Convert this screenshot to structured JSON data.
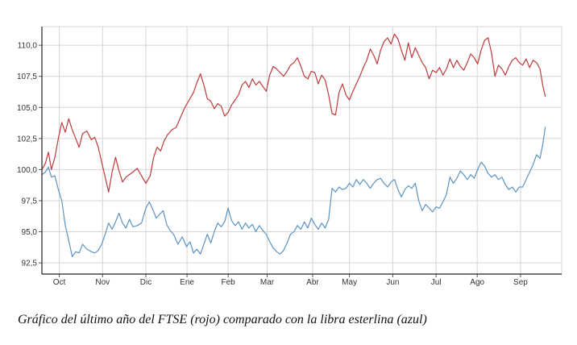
{
  "caption": "Gráfico del último año del FTSE (rojo) comparado con la libra esterlina (azul)",
  "colors": {
    "ftse": "#c0393b",
    "gbp": "#5b93c2",
    "grid": "#d4d4d4",
    "axis": "#222222"
  },
  "chart_data": {
    "type": "line",
    "title": "",
    "xlabel": "",
    "ylabel": "",
    "grid": true,
    "ylim": [
      91.6,
      111.5
    ],
    "yticks": [
      "92,5",
      "95,0",
      "97,5",
      "100,0",
      "102,5",
      "105,0",
      "107,5",
      "110,0"
    ],
    "ytick_values": [
      92.5,
      95.0,
      97.5,
      100.0,
      102.5,
      105.0,
      107.5,
      110.0
    ],
    "xlim": [
      0,
      12
    ],
    "xticks": [
      "Oct",
      "Nov",
      "Dic",
      "Ene",
      "Feb",
      "Mar",
      "Abr",
      "May",
      "Jun",
      "Jul",
      "Ago",
      "Sep"
    ],
    "xtick_values": [
      0.4,
      1.4,
      2.4,
      3.35,
      4.3,
      5.2,
      6.25,
      7.1,
      8.1,
      9.1,
      10.05,
      11.05
    ],
    "series": [
      {
        "key": "ftse",
        "points": [
          [
            0.0,
            100.0
          ],
          [
            0.08,
            100.5
          ],
          [
            0.15,
            101.4
          ],
          [
            0.22,
            100.0
          ],
          [
            0.3,
            101.0
          ],
          [
            0.38,
            102.5
          ],
          [
            0.46,
            103.8
          ],
          [
            0.54,
            103.0
          ],
          [
            0.62,
            104.1
          ],
          [
            0.7,
            103.2
          ],
          [
            0.78,
            102.5
          ],
          [
            0.86,
            101.8
          ],
          [
            0.94,
            102.9
          ],
          [
            1.04,
            103.1
          ],
          [
            1.14,
            102.4
          ],
          [
            1.22,
            102.6
          ],
          [
            1.3,
            101.8
          ],
          [
            1.38,
            100.6
          ],
          [
            1.46,
            99.4
          ],
          [
            1.54,
            98.2
          ],
          [
            1.62,
            99.8
          ],
          [
            1.7,
            101.0
          ],
          [
            1.78,
            99.9
          ],
          [
            1.86,
            99.0
          ],
          [
            1.94,
            99.4
          ],
          [
            2.02,
            99.6
          ],
          [
            2.1,
            99.8
          ],
          [
            2.2,
            100.1
          ],
          [
            2.3,
            99.5
          ],
          [
            2.4,
            98.9
          ],
          [
            2.5,
            99.5
          ],
          [
            2.58,
            101.0
          ],
          [
            2.66,
            101.8
          ],
          [
            2.74,
            101.5
          ],
          [
            2.82,
            102.3
          ],
          [
            2.9,
            102.8
          ],
          [
            3.0,
            103.2
          ],
          [
            3.1,
            103.4
          ],
          [
            3.2,
            104.2
          ],
          [
            3.3,
            105.0
          ],
          [
            3.4,
            105.6
          ],
          [
            3.5,
            106.2
          ],
          [
            3.58,
            107.0
          ],
          [
            3.66,
            107.7
          ],
          [
            3.74,
            106.8
          ],
          [
            3.82,
            105.7
          ],
          [
            3.9,
            105.5
          ],
          [
            3.98,
            104.9
          ],
          [
            4.06,
            105.3
          ],
          [
            4.14,
            105.1
          ],
          [
            4.22,
            104.3
          ],
          [
            4.3,
            104.6
          ],
          [
            4.38,
            105.2
          ],
          [
            4.46,
            105.6
          ],
          [
            4.54,
            106.0
          ],
          [
            4.62,
            106.8
          ],
          [
            4.7,
            107.1
          ],
          [
            4.78,
            106.6
          ],
          [
            4.86,
            107.3
          ],
          [
            4.94,
            106.8
          ],
          [
            5.02,
            107.1
          ],
          [
            5.1,
            106.7
          ],
          [
            5.18,
            106.3
          ],
          [
            5.26,
            107.6
          ],
          [
            5.34,
            108.3
          ],
          [
            5.42,
            108.1
          ],
          [
            5.5,
            107.8
          ],
          [
            5.58,
            107.5
          ],
          [
            5.66,
            107.9
          ],
          [
            5.74,
            108.4
          ],
          [
            5.82,
            108.6
          ],
          [
            5.9,
            109.0
          ],
          [
            5.98,
            108.3
          ],
          [
            6.06,
            107.5
          ],
          [
            6.14,
            107.3
          ],
          [
            6.22,
            107.9
          ],
          [
            6.3,
            107.8
          ],
          [
            6.38,
            106.9
          ],
          [
            6.46,
            107.6
          ],
          [
            6.54,
            107.2
          ],
          [
            6.62,
            106.0
          ],
          [
            6.7,
            104.5
          ],
          [
            6.78,
            104.4
          ],
          [
            6.86,
            106.2
          ],
          [
            6.94,
            106.9
          ],
          [
            7.02,
            106.0
          ],
          [
            7.1,
            105.6
          ],
          [
            7.18,
            106.3
          ],
          [
            7.26,
            106.9
          ],
          [
            7.34,
            107.5
          ],
          [
            7.42,
            108.2
          ],
          [
            7.5,
            108.8
          ],
          [
            7.58,
            109.7
          ],
          [
            7.66,
            109.2
          ],
          [
            7.74,
            108.5
          ],
          [
            7.82,
            109.6
          ],
          [
            7.9,
            110.3
          ],
          [
            7.98,
            110.6
          ],
          [
            8.06,
            110.1
          ],
          [
            8.14,
            110.9
          ],
          [
            8.22,
            110.5
          ],
          [
            8.3,
            109.6
          ],
          [
            8.38,
            108.8
          ],
          [
            8.46,
            110.2
          ],
          [
            8.54,
            109.0
          ],
          [
            8.62,
            109.8
          ],
          [
            8.7,
            109.2
          ],
          [
            8.78,
            108.6
          ],
          [
            8.86,
            108.2
          ],
          [
            8.94,
            107.3
          ],
          [
            9.02,
            108.0
          ],
          [
            9.1,
            107.8
          ],
          [
            9.18,
            108.2
          ],
          [
            9.26,
            107.6
          ],
          [
            9.34,
            108.1
          ],
          [
            9.42,
            108.9
          ],
          [
            9.5,
            108.2
          ],
          [
            9.58,
            108.8
          ],
          [
            9.66,
            108.3
          ],
          [
            9.74,
            108.0
          ],
          [
            9.82,
            108.6
          ],
          [
            9.9,
            109.3
          ],
          [
            9.98,
            109.0
          ],
          [
            10.06,
            108.5
          ],
          [
            10.14,
            109.6
          ],
          [
            10.22,
            110.4
          ],
          [
            10.3,
            110.6
          ],
          [
            10.38,
            109.4
          ],
          [
            10.46,
            107.5
          ],
          [
            10.54,
            108.4
          ],
          [
            10.62,
            108.1
          ],
          [
            10.7,
            107.6
          ],
          [
            10.78,
            108.3
          ],
          [
            10.86,
            108.8
          ],
          [
            10.94,
            109.0
          ],
          [
            11.02,
            108.6
          ],
          [
            11.1,
            108.4
          ],
          [
            11.18,
            108.9
          ],
          [
            11.26,
            108.2
          ],
          [
            11.34,
            108.8
          ],
          [
            11.42,
            108.6
          ],
          [
            11.5,
            108.1
          ],
          [
            11.56,
            106.8
          ],
          [
            11.62,
            105.9
          ]
        ]
      },
      {
        "key": "gbp",
        "points": [
          [
            0.0,
            99.6
          ],
          [
            0.08,
            99.8
          ],
          [
            0.15,
            100.2
          ],
          [
            0.22,
            99.4
          ],
          [
            0.3,
            99.5
          ],
          [
            0.38,
            98.4
          ],
          [
            0.46,
            97.5
          ],
          [
            0.54,
            95.5
          ],
          [
            0.62,
            94.3
          ],
          [
            0.7,
            93.0
          ],
          [
            0.78,
            93.4
          ],
          [
            0.86,
            93.3
          ],
          [
            0.94,
            94.0
          ],
          [
            1.04,
            93.6
          ],
          [
            1.14,
            93.4
          ],
          [
            1.22,
            93.3
          ],
          [
            1.3,
            93.5
          ],
          [
            1.38,
            94.0
          ],
          [
            1.46,
            94.8
          ],
          [
            1.54,
            95.7
          ],
          [
            1.62,
            95.2
          ],
          [
            1.7,
            95.8
          ],
          [
            1.78,
            96.5
          ],
          [
            1.86,
            95.7
          ],
          [
            1.94,
            95.3
          ],
          [
            2.02,
            96.0
          ],
          [
            2.1,
            95.4
          ],
          [
            2.2,
            95.5
          ],
          [
            2.3,
            95.7
          ],
          [
            2.4,
            96.9
          ],
          [
            2.48,
            97.4
          ],
          [
            2.56,
            96.8
          ],
          [
            2.64,
            96.1
          ],
          [
            2.72,
            96.4
          ],
          [
            2.8,
            96.7
          ],
          [
            2.88,
            95.6
          ],
          [
            2.96,
            95.1
          ],
          [
            3.04,
            94.8
          ],
          [
            3.14,
            94.0
          ],
          [
            3.24,
            94.6
          ],
          [
            3.34,
            93.8
          ],
          [
            3.42,
            94.2
          ],
          [
            3.5,
            93.3
          ],
          [
            3.58,
            93.6
          ],
          [
            3.66,
            93.2
          ],
          [
            3.74,
            94.0
          ],
          [
            3.82,
            94.8
          ],
          [
            3.9,
            94.1
          ],
          [
            3.98,
            95.0
          ],
          [
            4.06,
            95.7
          ],
          [
            4.14,
            95.4
          ],
          [
            4.22,
            95.8
          ],
          [
            4.3,
            96.9
          ],
          [
            4.38,
            95.9
          ],
          [
            4.46,
            95.5
          ],
          [
            4.54,
            95.8
          ],
          [
            4.62,
            95.2
          ],
          [
            4.7,
            95.7
          ],
          [
            4.78,
            95.3
          ],
          [
            4.86,
            95.6
          ],
          [
            4.94,
            95.0
          ],
          [
            5.02,
            95.5
          ],
          [
            5.1,
            95.1
          ],
          [
            5.18,
            94.8
          ],
          [
            5.26,
            94.2
          ],
          [
            5.34,
            93.7
          ],
          [
            5.42,
            93.4
          ],
          [
            5.5,
            93.2
          ],
          [
            5.58,
            93.5
          ],
          [
            5.66,
            94.1
          ],
          [
            5.74,
            94.8
          ],
          [
            5.82,
            95.0
          ],
          [
            5.9,
            95.5
          ],
          [
            5.98,
            95.2
          ],
          [
            6.06,
            95.8
          ],
          [
            6.14,
            95.3
          ],
          [
            6.22,
            96.1
          ],
          [
            6.3,
            95.6
          ],
          [
            6.38,
            95.2
          ],
          [
            6.46,
            95.7
          ],
          [
            6.54,
            95.3
          ],
          [
            6.62,
            96.0
          ],
          [
            6.7,
            98.5
          ],
          [
            6.78,
            98.2
          ],
          [
            6.86,
            98.6
          ],
          [
            6.94,
            98.4
          ],
          [
            7.02,
            98.5
          ],
          [
            7.1,
            98.9
          ],
          [
            7.18,
            98.6
          ],
          [
            7.26,
            99.2
          ],
          [
            7.34,
            98.8
          ],
          [
            7.42,
            99.2
          ],
          [
            7.5,
            98.9
          ],
          [
            7.58,
            98.5
          ],
          [
            7.66,
            98.9
          ],
          [
            7.74,
            99.2
          ],
          [
            7.82,
            99.3
          ],
          [
            7.9,
            98.9
          ],
          [
            7.98,
            98.6
          ],
          [
            8.06,
            99.0
          ],
          [
            8.14,
            99.2
          ],
          [
            8.22,
            98.4
          ],
          [
            8.3,
            97.8
          ],
          [
            8.38,
            98.4
          ],
          [
            8.46,
            98.7
          ],
          [
            8.54,
            98.5
          ],
          [
            8.62,
            98.9
          ],
          [
            8.7,
            97.5
          ],
          [
            8.78,
            96.7
          ],
          [
            8.86,
            97.2
          ],
          [
            8.94,
            96.9
          ],
          [
            9.02,
            96.6
          ],
          [
            9.1,
            97.0
          ],
          [
            9.18,
            96.9
          ],
          [
            9.26,
            97.4
          ],
          [
            9.34,
            98.0
          ],
          [
            9.42,
            99.4
          ],
          [
            9.5,
            98.9
          ],
          [
            9.58,
            99.3
          ],
          [
            9.66,
            99.9
          ],
          [
            9.74,
            99.6
          ],
          [
            9.82,
            99.2
          ],
          [
            9.9,
            99.6
          ],
          [
            9.98,
            99.3
          ],
          [
            10.06,
            100.0
          ],
          [
            10.14,
            100.6
          ],
          [
            10.22,
            100.3
          ],
          [
            10.3,
            99.7
          ],
          [
            10.38,
            99.4
          ],
          [
            10.46,
            99.6
          ],
          [
            10.54,
            99.2
          ],
          [
            10.62,
            99.4
          ],
          [
            10.7,
            98.8
          ],
          [
            10.78,
            98.4
          ],
          [
            10.86,
            98.6
          ],
          [
            10.94,
            98.2
          ],
          [
            11.02,
            98.6
          ],
          [
            11.1,
            98.6
          ],
          [
            11.18,
            99.2
          ],
          [
            11.26,
            99.8
          ],
          [
            11.34,
            100.4
          ],
          [
            11.42,
            101.2
          ],
          [
            11.5,
            100.9
          ],
          [
            11.56,
            102.0
          ],
          [
            11.62,
            103.4
          ]
        ]
      }
    ]
  }
}
